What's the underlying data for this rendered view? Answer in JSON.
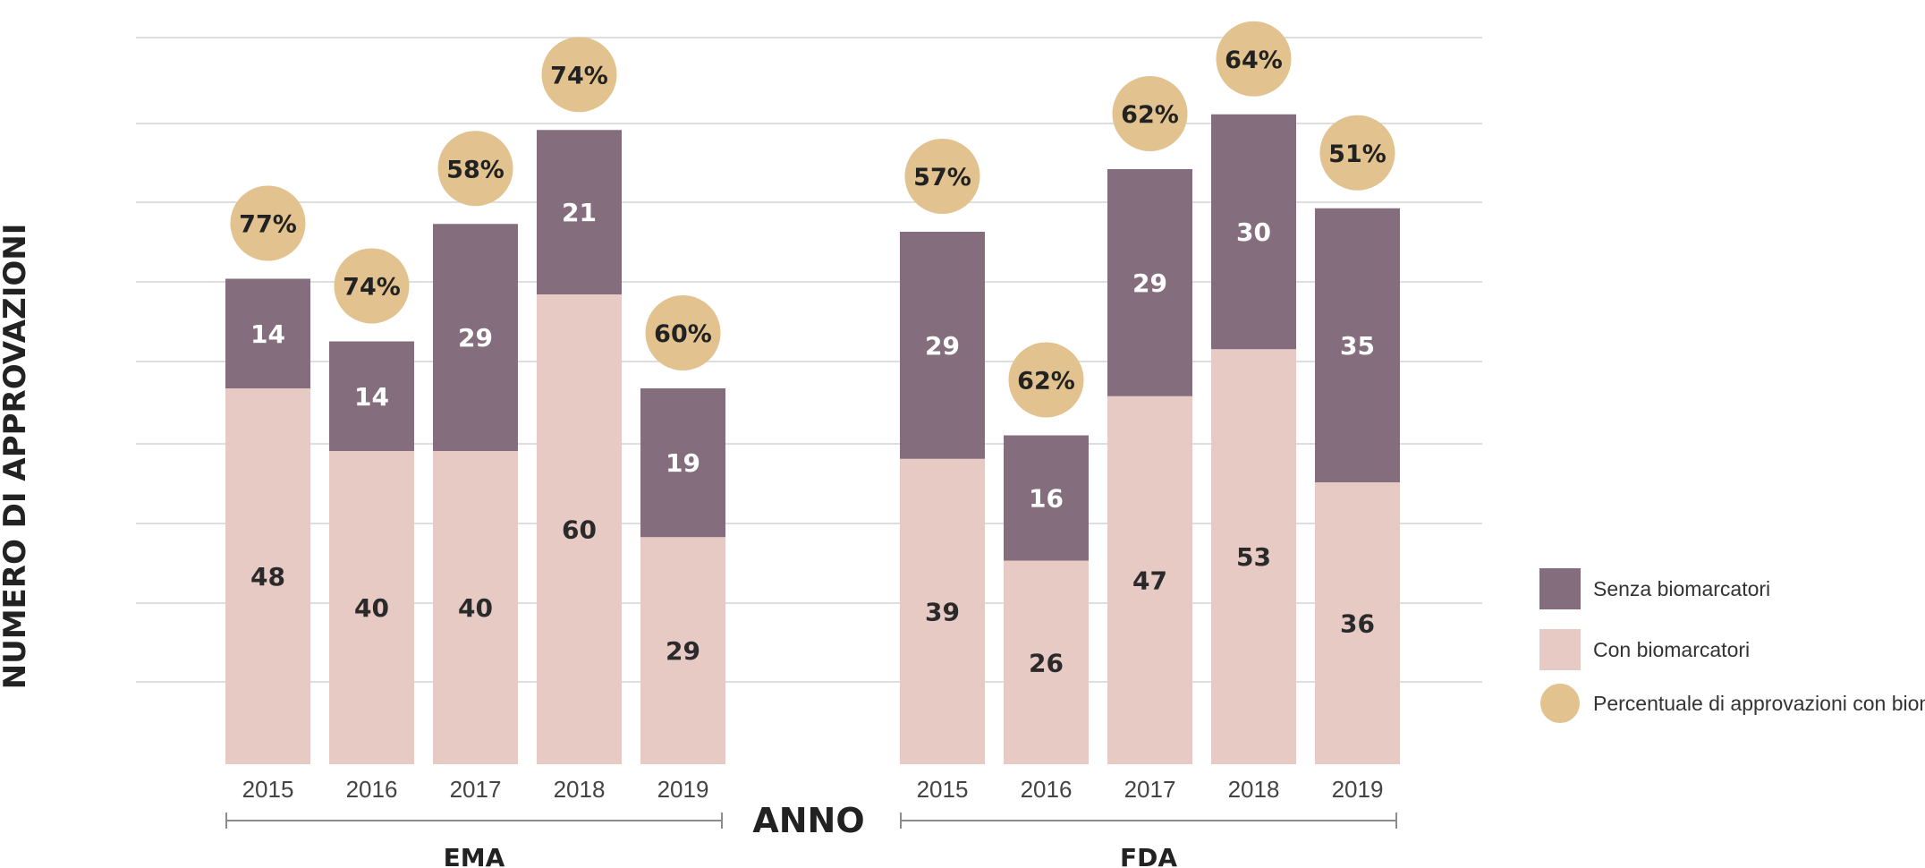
{
  "colors": {
    "senza": "#846d7d",
    "con": "#e8cac5",
    "circle": "#e2c28f",
    "grid": "#d4d4d4",
    "bracket": "#8c8c8c"
  },
  "axis": {
    "ylabel": "NUMERO DI APPROVAZIONI",
    "xlabel": "ANNO"
  },
  "chart_data": {
    "type": "bar",
    "stacked": true,
    "title": "",
    "xlabel": "ANNO",
    "ylabel": "NUMERO DI APPROVAZIONI",
    "ylim": [
      0,
      92
    ],
    "grid": true,
    "legend_position": "right",
    "groups": [
      {
        "name": "EMA",
        "categories": [
          "2015",
          "2016",
          "2017",
          "2018",
          "2019"
        ],
        "series": [
          {
            "name": "Con biomarcatori",
            "values": [
              48,
              40,
              40,
              60,
              29
            ]
          },
          {
            "name": "Senza biomarcatori",
            "values": [
              14,
              14,
              29,
              21,
              19
            ]
          }
        ],
        "percent_labels": [
          "77%",
          "74%",
          "58%",
          "74%",
          "60%"
        ]
      },
      {
        "name": "FDA",
        "categories": [
          "2015",
          "2016",
          "2017",
          "2018",
          "2019"
        ],
        "series": [
          {
            "name": "Con biomarcatori",
            "values": [
              39,
              26,
              47,
              53,
              36
            ]
          },
          {
            "name": "Senza biomarcatori",
            "values": [
              29,
              16,
              29,
              30,
              35
            ]
          }
        ],
        "percent_labels": [
          "57%",
          "62%",
          "62%",
          "64%",
          "51%"
        ]
      }
    ],
    "legend": [
      {
        "label": "Senza biomarcatori",
        "shape": "square",
        "color_key": "senza"
      },
      {
        "label": "Con biomarcatori",
        "shape": "square",
        "color_key": "con"
      },
      {
        "label": "Percentuale di approvazioni con biomarcatori",
        "shape": "circle",
        "color_key": "circle"
      }
    ]
  }
}
